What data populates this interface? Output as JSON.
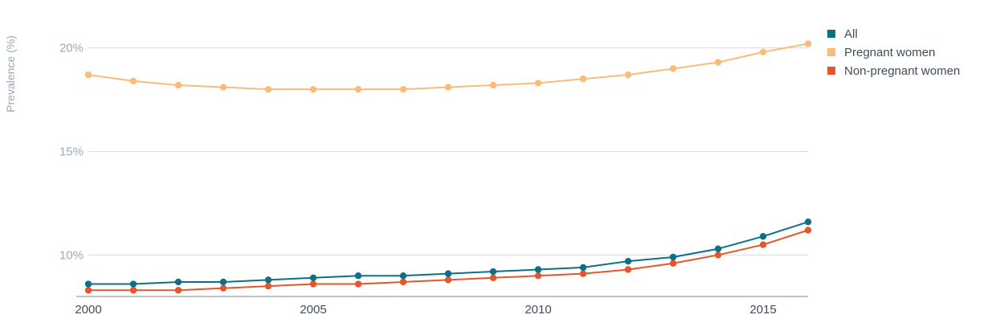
{
  "chart_data": {
    "type": "line",
    "ylabel": "Prevalence (%)",
    "xlabel": "",
    "x": [
      2000,
      2001,
      2002,
      2003,
      2004,
      2005,
      2006,
      2007,
      2008,
      2009,
      2010,
      2011,
      2012,
      2013,
      2014,
      2015,
      2016
    ],
    "xlim": [
      2000,
      2016
    ],
    "ylim": [
      8,
      22
    ],
    "x_ticks": [
      2000,
      2005,
      2010,
      2015
    ],
    "x_tick_labels": [
      "2000",
      "2005",
      "2010",
      "2015"
    ],
    "y_ticks": [
      10,
      15,
      20
    ],
    "y_tick_labels": [
      "10%",
      "15%",
      "20%"
    ],
    "grid": "horizontal",
    "legend_position": "top-right",
    "series": [
      {
        "name": "All",
        "color": "#0d7088",
        "values": [
          8.6,
          8.6,
          8.7,
          8.7,
          8.8,
          8.9,
          9.0,
          9.0,
          9.1,
          9.2,
          9.3,
          9.4,
          9.7,
          9.9,
          10.3,
          10.9,
          11.6
        ]
      },
      {
        "name": "Pregnant women",
        "color": "#fcbc78",
        "values": [
          18.7,
          18.4,
          18.2,
          18.1,
          18.0,
          18.0,
          18.0,
          18.0,
          18.1,
          18.2,
          18.3,
          18.5,
          18.7,
          19.0,
          19.3,
          19.8,
          20.2
        ]
      },
      {
        "name": "Non-pregnant women",
        "color": "#e5562a",
        "values": [
          8.3,
          8.3,
          8.3,
          8.4,
          8.5,
          8.6,
          8.6,
          8.7,
          8.8,
          8.9,
          9.0,
          9.1,
          9.3,
          9.6,
          10.0,
          10.5,
          11.2
        ]
      }
    ]
  }
}
